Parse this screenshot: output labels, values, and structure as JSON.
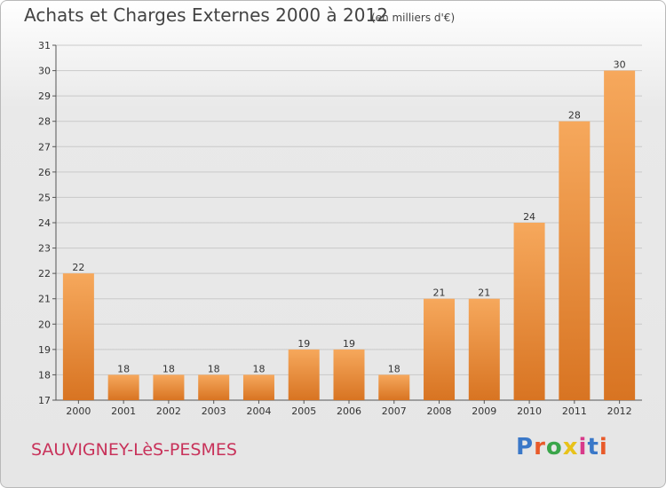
{
  "header": {
    "title": "Achats et Charges Externes 2000 à 2012",
    "unit": "(en milliers d'€)"
  },
  "footer": {
    "town": "SAUVIGNEY-LèS-PESMES",
    "logo_letters": [
      "P",
      "r",
      "o",
      "x",
      "i",
      "t",
      "i"
    ]
  },
  "colors": {
    "bar_light": "#f6a85c",
    "bar_dark": "#d87422",
    "town": "#c8325a",
    "logo": [
      "#3a78c8",
      "#e85a2a",
      "#3aa54a",
      "#e8c21a",
      "#d83a8a",
      "#3a78c8",
      "#e85a2a"
    ]
  },
  "chart_data": {
    "type": "bar",
    "title": "Achats et Charges Externes 2000 à 2012",
    "subtitle": "(en milliers d'€)",
    "categories": [
      "2000",
      "2001",
      "2002",
      "2003",
      "2004",
      "2005",
      "2006",
      "2007",
      "2008",
      "2009",
      "2010",
      "2011",
      "2012"
    ],
    "values": [
      22,
      18,
      18,
      18,
      18,
      19,
      19,
      18,
      21,
      21,
      24,
      28,
      30
    ],
    "ylim": [
      17,
      31
    ],
    "yticks": [
      17,
      18,
      19,
      20,
      21,
      22,
      23,
      24,
      25,
      26,
      27,
      28,
      29,
      30,
      31
    ],
    "grid": true
  }
}
